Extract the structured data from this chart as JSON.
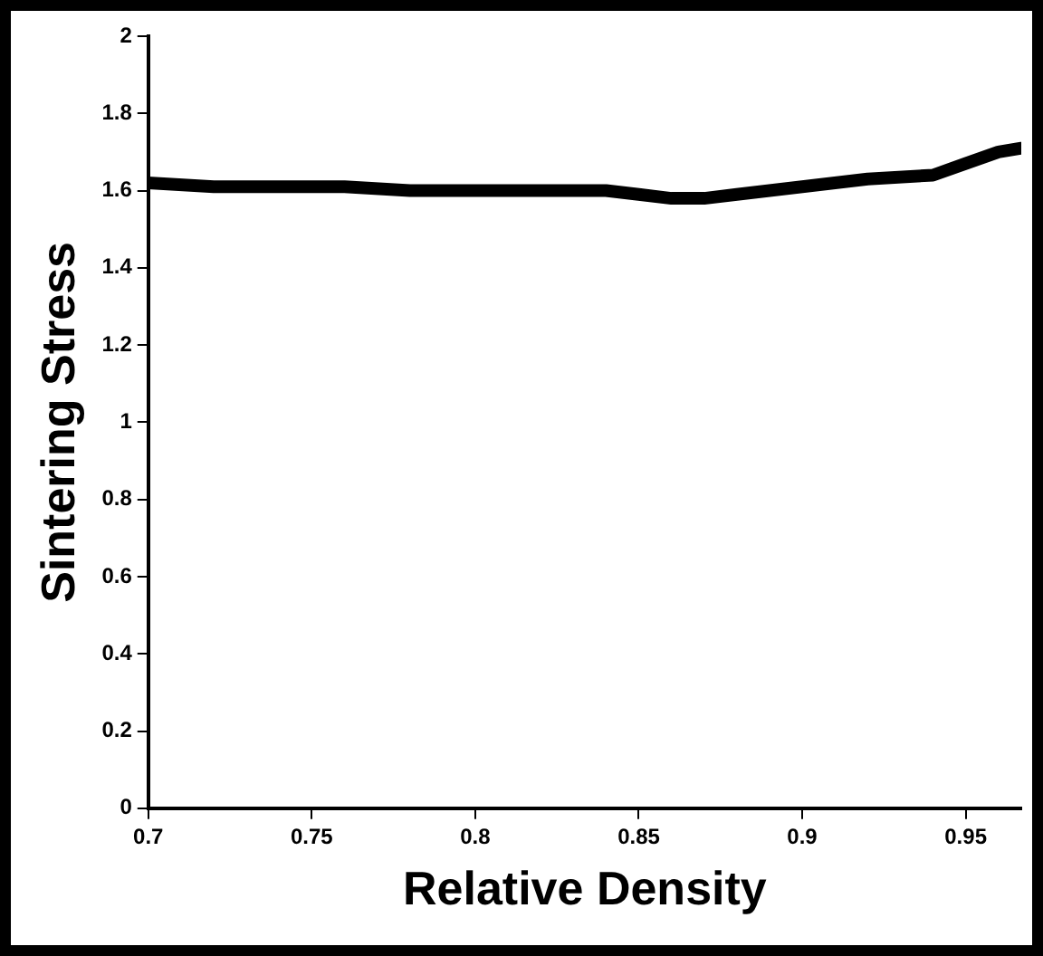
{
  "chart_data": {
    "type": "line",
    "xlabel": "Relative Density",
    "ylabel": "Sintering Stress",
    "series": [
      {
        "color": "#000000",
        "x": [
          0.7,
          0.72,
          0.74,
          0.76,
          0.78,
          0.8,
          0.82,
          0.84,
          0.85,
          0.86,
          0.87,
          0.88,
          0.9,
          0.92,
          0.94,
          0.95,
          0.96,
          0.967
        ],
        "values": [
          1.62,
          1.61,
          1.61,
          1.61,
          1.6,
          1.6,
          1.6,
          1.6,
          1.59,
          1.58,
          1.58,
          1.59,
          1.61,
          1.63,
          1.64,
          1.67,
          1.7,
          1.71
        ]
      }
    ],
    "xlim": [
      0.7,
      0.967
    ],
    "xticks": [
      0.7,
      0.75,
      0.8,
      0.85,
      0.9,
      0.95
    ],
    "ylim": [
      0,
      2
    ],
    "yticks": [
      0,
      0.2,
      0.4,
      0.6,
      0.8,
      1,
      1.2,
      1.4,
      1.6,
      1.8,
      2
    ],
    "grid": false,
    "legend": false,
    "marker": "none",
    "line_style": "solid"
  }
}
